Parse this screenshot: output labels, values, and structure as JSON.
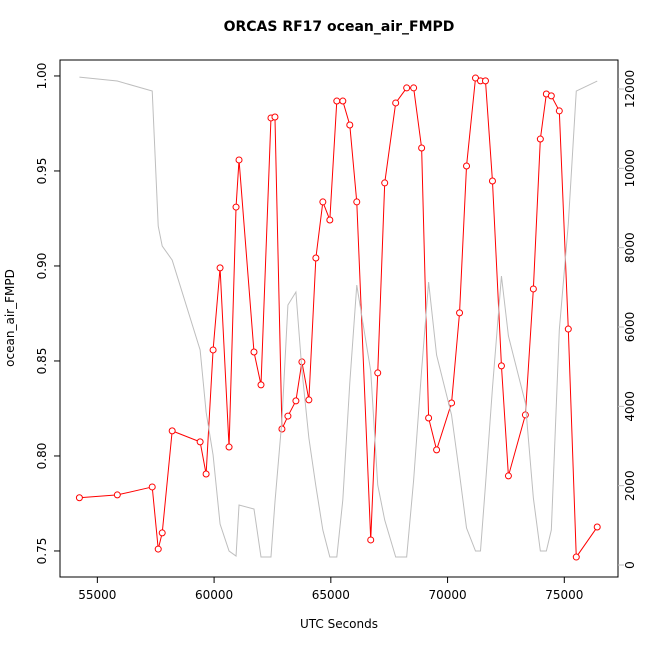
{
  "chart_data": {
    "type": "line",
    "title": "ORCAS RF17 ocean_air_FMPD",
    "x_label": "UTC Seconds",
    "y_label": "ocean_air_FMPD",
    "x": [
      54231,
      55855,
      57350,
      57607,
      57778,
      58205,
      59402,
      59658,
      59957,
      60256,
      60641,
      60940,
      61068,
      61709,
      62009,
      62436,
      62607,
      62906,
      63162,
      63504,
      63761,
      64060,
      64359,
      64658,
      64957,
      65256,
      65513,
      65812,
      66111,
      66709,
      67009,
      67308,
      67778,
      68248,
      68547,
      68889,
      69188,
      69530,
      70171,
      70513,
      70812,
      71197,
      71410,
      71624,
      71923,
      72308,
      72607,
      73333,
      73675,
      73974,
      74231,
      74444,
      74786,
      75171,
      75513,
      76410
    ],
    "series": [
      {
        "color": "#ff0000",
        "values": [
          0.778,
          0.7795,
          0.7837,
          0.751,
          0.7595,
          0.8132,
          0.8074,
          0.7905,
          0.8558,
          0.899,
          0.8047,
          0.931,
          0.9558,
          0.8547,
          0.8374,
          0.9779,
          0.9784,
          0.8142,
          0.821,
          0.829,
          0.8495,
          0.8295,
          0.9042,
          0.9337,
          0.9242,
          0.9868,
          0.9868,
          0.9742,
          0.9337,
          0.7558,
          0.8437,
          0.9437,
          0.9858,
          0.9937,
          0.9937,
          0.9621,
          0.82,
          0.8032,
          0.8279,
          0.8753,
          0.9526,
          0.9989,
          0.9974,
          0.9974,
          0.9447,
          0.8474,
          0.7895,
          0.8216,
          0.8879,
          0.9668,
          0.9905,
          0.9895,
          0.9816,
          0.8668,
          0.7468,
          0.7626
        ]
      },
      {
        "color": "#bebebe",
        "axis": "y2",
        "values": [
          12300,
          12201,
          11949,
          8545,
          8041,
          7688,
          5420,
          3857,
          2773,
          1033,
          353,
          227,
          1512,
          1412,
          202,
          202,
          1588,
          3655,
          6554,
          6882,
          4916,
          3201,
          1991,
          882,
          202,
          202,
          1639,
          4588,
          7058,
          4890,
          2017,
          1134,
          202,
          202,
          2143,
          4916,
          7134,
          5294,
          3781,
          2294,
          933,
          353,
          353,
          2017,
          4462,
          7285,
          5773,
          4084,
          1689,
          353,
          353,
          882,
          5924,
          8596,
          11949,
          12200
        ]
      }
    ],
    "xlim": [
      53400,
      77300
    ],
    "xticks": [
      55000,
      60000,
      65000,
      70000,
      75000
    ],
    "ylim": [
      0.7363,
      1.0084
    ],
    "yticks": [
      0.75,
      {
        "value": 0.8,
        "label": "0.80"
      },
      0.85,
      {
        "value": 0.9,
        "label": "0.90"
      },
      0.95,
      {
        "value": 1.0,
        "label": "1.00"
      }
    ],
    "y2lim": [
      -302,
      12731
    ],
    "y2ticks": [
      0,
      2000,
      4000,
      6000,
      8000,
      10000,
      12000
    ],
    "y2_color": "#bbbbbb"
  }
}
